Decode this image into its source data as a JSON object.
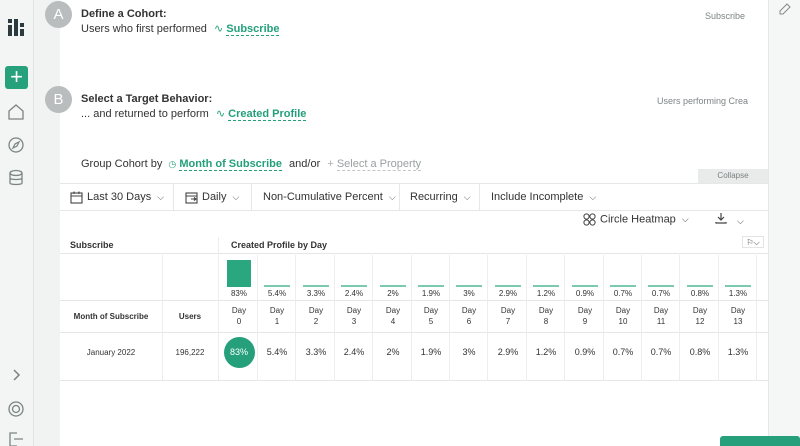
{
  "cohort": {
    "step": "A",
    "title": "Define a Cohort:",
    "prefix": "Users who first performed",
    "event": "Subscribe",
    "hint": "Subscribe"
  },
  "behavior": {
    "step": "B",
    "title": "Select a Target Behavior:",
    "prefix": "... and returned to perform",
    "event": "Created Profile",
    "hint": "Users performing Crea"
  },
  "group": {
    "label": "Group Cohort by",
    "property": "Month of Subscribe",
    "and_or": "and/or",
    "add_property": "Select a Property"
  },
  "collapse_label": "Collapse",
  "toolbar": {
    "date_range": "Last 30 Days",
    "interval": "Daily",
    "measure": "Non-Cumulative Percent",
    "mode": "Recurring",
    "incomplete": "Include Incomplete"
  },
  "view": {
    "label": "Circle Heatmap"
  },
  "table": {
    "left_header": "Subscribe",
    "right_header": "Created Profile by Day",
    "col_month": "Month of Subscribe",
    "col_users": "Users",
    "days": [
      {
        "label": "Day",
        "num": "0",
        "summary": "83%",
        "value": "83%",
        "pct": 83
      },
      {
        "label": "Day",
        "num": "1",
        "summary": "5.4%",
        "value": "5.4%",
        "pct": 5.4
      },
      {
        "label": "Day",
        "num": "2",
        "summary": "3.3%",
        "value": "3.3%",
        "pct": 3.3
      },
      {
        "label": "Day",
        "num": "3",
        "summary": "2.4%",
        "value": "2.4%",
        "pct": 2.4
      },
      {
        "label": "Day",
        "num": "4",
        "summary": "2%",
        "value": "2%",
        "pct": 2
      },
      {
        "label": "Day",
        "num": "5",
        "summary": "1.9%",
        "value": "1.9%",
        "pct": 1.9
      },
      {
        "label": "Day",
        "num": "6",
        "summary": "3%",
        "value": "3%",
        "pct": 3
      },
      {
        "label": "Day",
        "num": "7",
        "summary": "2.9%",
        "value": "2.9%",
        "pct": 2.9
      },
      {
        "label": "Day",
        "num": "8",
        "summary": "1.2%",
        "value": "1.2%",
        "pct": 1.2
      },
      {
        "label": "Day",
        "num": "9",
        "summary": "0.9%",
        "value": "0.9%",
        "pct": 0.9
      },
      {
        "label": "Day",
        "num": "10",
        "summary": "0.7%",
        "value": "0.7%",
        "pct": 0.7
      },
      {
        "label": "Day",
        "num": "11",
        "summary": "0.7%",
        "value": "0.7%",
        "pct": 0.7
      },
      {
        "label": "Day",
        "num": "12",
        "summary": "0.8%",
        "value": "0.8%",
        "pct": 0.8
      },
      {
        "label": "Day",
        "num": "13",
        "summary": "1.3%",
        "value": "1.3%",
        "pct": 1.3
      }
    ],
    "rows": [
      {
        "month": "January 2022",
        "users": "196,222"
      }
    ]
  },
  "colors": {
    "accent": "#25a07b",
    "step_badge": "#b9bdbd"
  },
  "icons": [
    "logo-icon",
    "plus-icon",
    "home-icon",
    "compass-icon",
    "database-icon",
    "chevron-right-icon",
    "help-ring-icon",
    "logout-icon",
    "calendar-icon",
    "calendar-interval-icon",
    "circles-icon",
    "download-icon",
    "flag-icon",
    "edit-icon"
  ]
}
